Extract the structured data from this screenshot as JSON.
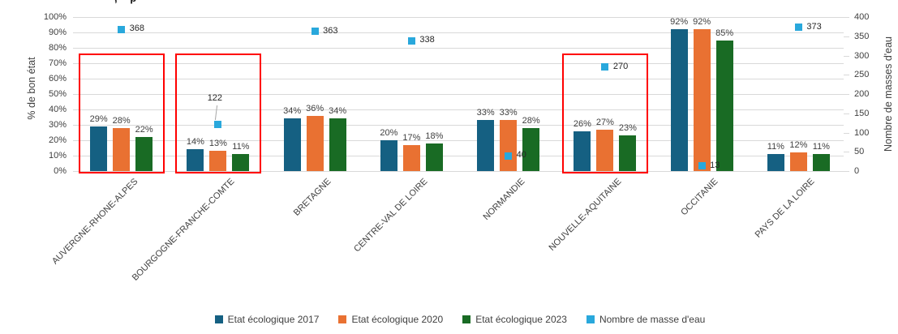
{
  "cropped_title_fragment": ", p",
  "colors": {
    "grid": "#D9D9D9",
    "axis_text": "#404040",
    "leader_line": "#A6A6A6",
    "highlight": "#FF0000",
    "background": "#FFFFFF"
  },
  "chart_data": {
    "type": "bar",
    "subtype": "grouped bars (left % axis) + scatter squares (right count axis)",
    "categories": [
      "AUVERGNE-RHONE-ALPES",
      "BOURGOGNE-FRANCHE-COMTE",
      "BRETAGNE",
      "CENTRE-VAL DE LOIRE",
      "NORMANDIE",
      "NOUVELLE-AQUITAINE",
      "OCCITANIE",
      "PAYS DE LA LOIRE"
    ],
    "series": [
      {
        "name": "Etat écologique 2017",
        "type": "bar",
        "axis": "left",
        "color": "#156082",
        "value_suffix": "%",
        "values": [
          29,
          14,
          34,
          20,
          33,
          26,
          92,
          11
        ]
      },
      {
        "name": "Etat écologique 2020",
        "type": "bar",
        "axis": "left",
        "color": "#E97132",
        "value_suffix": "%",
        "values": [
          28,
          13,
          36,
          17,
          33,
          27,
          92,
          12
        ]
      },
      {
        "name": "Etat écologique 2023",
        "type": "bar",
        "axis": "left",
        "color": "#196B24",
        "value_suffix": "%",
        "values": [
          22,
          11,
          34,
          18,
          28,
          23,
          85,
          11
        ]
      },
      {
        "name": "Nombre de masse d'eau",
        "type": "scatter",
        "axis": "right",
        "color": "#29A8DC",
        "value_suffix": "",
        "values": [
          368,
          122,
          363,
          338,
          40,
          270,
          13,
          373
        ],
        "label_placement": [
          "right",
          "callout",
          "right",
          "right",
          "right",
          "right",
          "right",
          "right"
        ]
      }
    ],
    "left_axis": {
      "label": "% de bon état",
      "min": 0,
      "max": 100,
      "step": 10,
      "ticks": [
        "100%",
        "90%",
        "80%",
        "70%",
        "60%",
        "50%",
        "40%",
        "30%",
        "20%",
        "10%",
        "0%"
      ]
    },
    "right_axis": {
      "label": "Nombre de masses d'eau",
      "min": 0,
      "max": 400,
      "step": 50,
      "ticks": [
        "400",
        "350",
        "300",
        "250",
        "200",
        "150",
        "100",
        "50",
        "0"
      ]
    },
    "highlighted_categories": [
      "AUVERGNE-RHONE-ALPES",
      "BOURGOGNE-FRANCHE-COMTE",
      "NOUVELLE-AQUITAINE"
    ],
    "grid": true,
    "legend_position": "bottom"
  },
  "legend": {
    "items": [
      {
        "label": "Etat écologique 2017",
        "color": "#156082"
      },
      {
        "label": "Etat écologique 2020",
        "color": "#E97132"
      },
      {
        "label": "Etat écologique 2023",
        "color": "#196B24"
      },
      {
        "label": "Nombre de masse d'eau",
        "color": "#29A8DC"
      }
    ]
  }
}
